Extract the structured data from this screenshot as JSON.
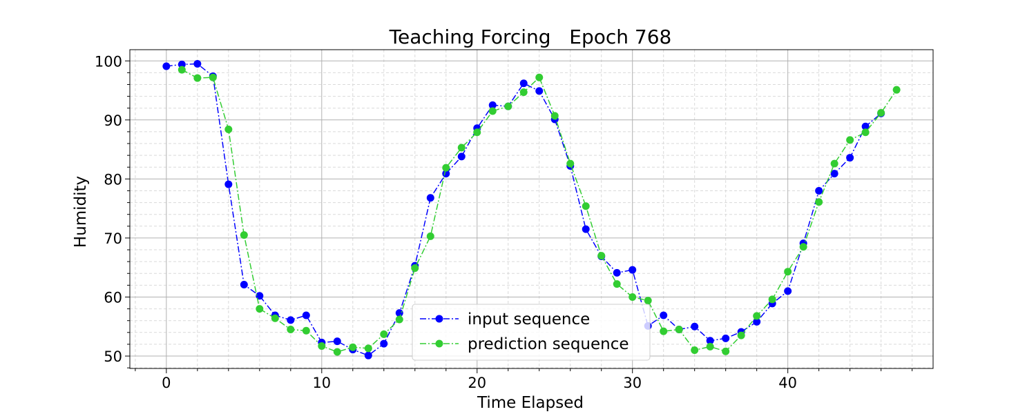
{
  "chart_data": {
    "type": "line",
    "title": "Teaching Forcing   Epoch 768",
    "xlabel": "Time Elapsed",
    "ylabel": "Humidity",
    "xlim": [
      -2.35,
      49.35
    ],
    "ylim": [
      47.9,
      101.9
    ],
    "x_ticks": [
      0,
      10,
      20,
      30,
      40
    ],
    "y_ticks": [
      50,
      60,
      70,
      80,
      90,
      100
    ],
    "x_minor_step": 2,
    "y_minor_step": 2,
    "grid": true,
    "legend_position": "bottom-center",
    "series": [
      {
        "name": "input sequence",
        "color": "#0000ff",
        "line_style": "dash-dot",
        "marker": "circle",
        "x": [
          0,
          1,
          2,
          3,
          4,
          5,
          6,
          7,
          8,
          9,
          10,
          11,
          12,
          13,
          14,
          15,
          16,
          17,
          18,
          19,
          20,
          21,
          22,
          23,
          24,
          25,
          26,
          27,
          28,
          29,
          30,
          31,
          32,
          33,
          34,
          35,
          36,
          37,
          38,
          39,
          40,
          41,
          42,
          43,
          44,
          45,
          46
        ],
        "values": [
          99.1,
          99.4,
          99.5,
          97.4,
          79.1,
          62.1,
          60.2,
          56.9,
          56.1,
          56.9,
          52.3,
          52.5,
          51.1,
          50.1,
          52.1,
          57.3,
          65.3,
          76.8,
          80.9,
          83.8,
          88.6,
          92.5,
          92.3,
          96.2,
          94.9,
          90.1,
          82.2,
          71.5,
          66.9,
          64.1,
          64.6,
          55.1,
          56.9,
          54.5,
          55.0,
          52.6,
          53.0,
          54.1,
          55.8,
          58.9,
          61.0,
          69.1,
          78.0,
          80.9,
          83.6,
          88.9,
          91.1
        ]
      },
      {
        "name": "prediction sequence",
        "color": "#32cd32",
        "line_style": "dash-dot",
        "marker": "circle",
        "x": [
          1,
          2,
          3,
          4,
          5,
          6,
          7,
          8,
          9,
          10,
          11,
          12,
          13,
          14,
          15,
          16,
          17,
          18,
          19,
          20,
          21,
          22,
          23,
          24,
          25,
          26,
          27,
          28,
          29,
          30,
          31,
          32,
          33,
          34,
          35,
          36,
          37,
          38,
          39,
          40,
          41,
          42,
          43,
          44,
          45,
          46,
          47
        ],
        "values": [
          98.5,
          97.1,
          97.2,
          88.4,
          70.5,
          58.0,
          56.4,
          54.5,
          54.3,
          51.7,
          50.7,
          51.5,
          51.3,
          53.7,
          56.2,
          64.9,
          70.3,
          81.9,
          85.3,
          87.9,
          91.5,
          92.3,
          94.7,
          97.2,
          90.7,
          82.6,
          75.4,
          67.0,
          62.2,
          60.0,
          59.4,
          54.2,
          54.5,
          51.0,
          51.6,
          50.8,
          53.5,
          56.8,
          59.6,
          64.3,
          68.5,
          76.1,
          82.6,
          86.6,
          87.9,
          91.2,
          95.1
        ]
      }
    ]
  }
}
